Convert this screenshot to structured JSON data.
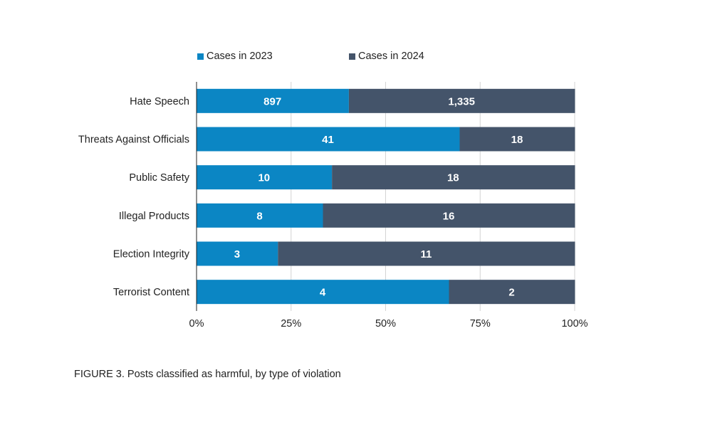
{
  "chart_data": {
    "type": "bar",
    "orientation": "horizontal",
    "stacked": "percent",
    "categories": [
      "Hate Speech",
      "Threats Against Officials",
      "Public Safety",
      "Illegal Products",
      "Election Integrity",
      "Terrorist Content"
    ],
    "series": [
      {
        "name": "Cases in 2023",
        "values": [
          897,
          41,
          10,
          8,
          3,
          4
        ],
        "labels": [
          "897",
          "41",
          "10",
          "8",
          "3",
          "4"
        ],
        "color": "#0b86c4"
      },
      {
        "name": "Cases in 2024",
        "values": [
          1335,
          18,
          18,
          16,
          11,
          2
        ],
        "labels": [
          "1,335",
          "18",
          "18",
          "16",
          "11",
          "2"
        ],
        "color": "#44546a"
      }
    ],
    "xlim": [
      0,
      100
    ],
    "xticks": [
      "0%",
      "25%",
      "50%",
      "75%",
      "100%"
    ],
    "grid": true,
    "legend_position": "top"
  },
  "caption": "FIGURE 3. Posts classified as harmful, by type of violation"
}
